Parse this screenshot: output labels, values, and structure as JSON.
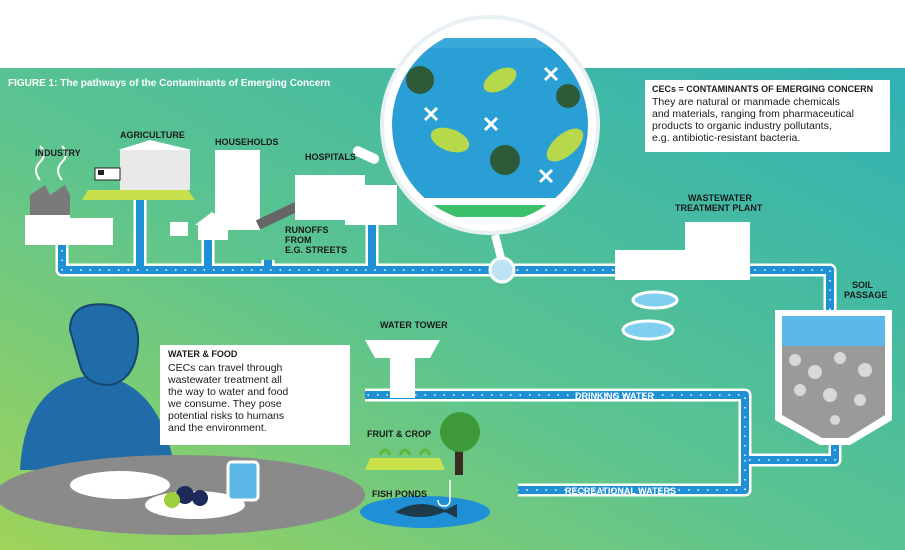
{
  "title": "FIGURE 1: The pathways of the Contaminants of Emerging Concern",
  "labels": {
    "industry": "INDUSTRY",
    "agriculture": "AGRICULTURE",
    "households": "HOUSEHOLDS",
    "hospitals": "HOSPITALS",
    "runoffs": [
      "RUNOFFS",
      "FROM",
      "E.G. STREETS"
    ],
    "wastewater": [
      "WASTEWATER",
      "TREATMENT PLANT"
    ],
    "soil": [
      "SOIL",
      "PASSAGE"
    ],
    "water_tower": "WATER TOWER",
    "drinking_water": "DRINKING WATER",
    "fruit_crop": "FRUIT & CROP",
    "fish_ponds": "FISH PONDS",
    "recreational_waters": "RECREATIONAL WATERS"
  },
  "cec_box": {
    "heading": "CECs = CONTAMINANTS OF EMERGING CONCERN",
    "body": [
      "They are natural or manmade chemicals",
      "and materials, ranging from pharmaceutical",
      "products to organic industry pollutants,",
      "e.g. antibiotic-resistant bacteria."
    ]
  },
  "food_box": {
    "heading": "WATER & FOOD",
    "body": [
      "CECs can travel through",
      "wastewater treatment all",
      "the way to water and food",
      "we consume. They pose",
      "potential risks to humans",
      "and the environment."
    ]
  }
}
